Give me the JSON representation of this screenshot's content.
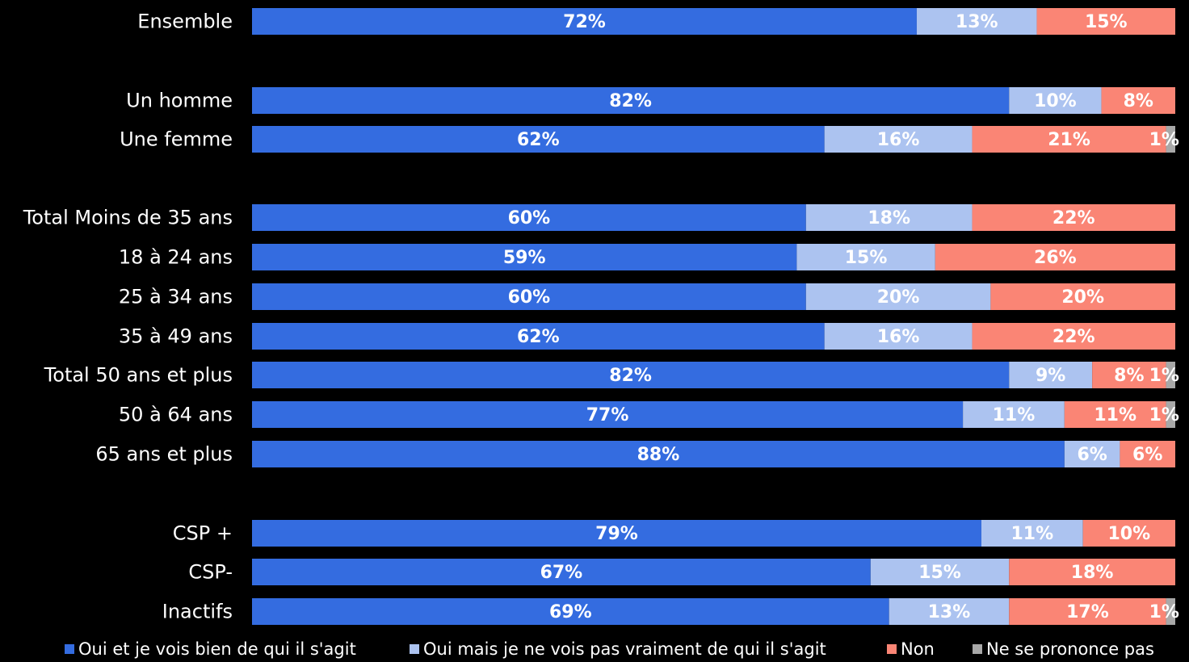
{
  "chart_data": {
    "type": "bar",
    "orientation": "horizontal",
    "stacked": true,
    "xlim": [
      0,
      100
    ],
    "categories": [
      "Ensemble",
      "Un homme",
      "Une femme",
      "Total Moins de 35 ans",
      "18 à 24 ans",
      "25 à 34 ans",
      "35 à 49 ans",
      "Total 50 ans et plus",
      "50 à 64 ans",
      "65 ans et plus",
      "CSP +",
      "CSP-",
      "Inactifs"
    ],
    "series": [
      {
        "name": "Oui et je vois bien de qui il s'agit",
        "color": "#346ce0",
        "values": [
          72,
          82,
          62,
          60,
          59,
          60,
          62,
          82,
          77,
          88,
          79,
          67,
          69
        ]
      },
      {
        "name": "Oui mais je ne vois pas vraiment de qui il s'agit",
        "color": "#acc3f0",
        "values": [
          13,
          10,
          16,
          18,
          15,
          20,
          16,
          9,
          11,
          6,
          11,
          15,
          13
        ]
      },
      {
        "name": "Non",
        "color": "#fa8575",
        "values": [
          15,
          8,
          21,
          22,
          26,
          20,
          22,
          8,
          11,
          6,
          10,
          18,
          17
        ]
      },
      {
        "name": "Ne se prononce pas",
        "color": "#a8a8a8",
        "values": [
          0,
          0,
          1,
          0,
          0,
          0,
          0,
          1,
          1,
          0,
          0,
          0,
          1
        ]
      }
    ],
    "value_suffix": "%",
    "grid": false,
    "legend_position": "bottom"
  }
}
